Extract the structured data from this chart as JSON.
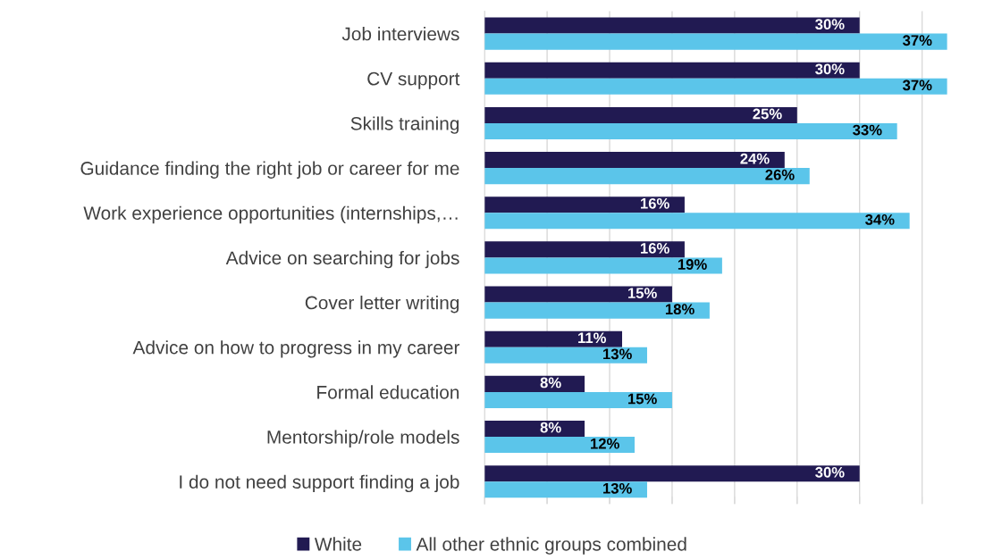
{
  "chart_data": {
    "type": "bar",
    "orientation": "horizontal",
    "categories": [
      "Job interviews",
      "CV support",
      "Skills training",
      "Guidance finding the right job or career for me",
      "Work experience opportunities (internships,…",
      "Advice on searching for jobs",
      "Cover letter writing",
      "Advice on how to progress in my career",
      "Formal education",
      "Mentorship/role models",
      "I do not need support finding a job"
    ],
    "series": [
      {
        "name": "White",
        "color": "#211a52",
        "values": [
          30,
          30,
          25,
          24,
          16,
          16,
          15,
          11,
          8,
          8,
          30
        ],
        "value_labels": [
          "30%",
          "30%",
          "25%",
          "24%",
          "16%",
          "16%",
          "15%",
          "11%",
          "8%",
          "8%",
          "30%"
        ]
      },
      {
        "name": "All other ethnic groups combined",
        "color": "#5bc5ea",
        "values": [
          37,
          37,
          33,
          26,
          34,
          19,
          18,
          13,
          15,
          12,
          13
        ],
        "value_labels": [
          "37%",
          "37%",
          "33%",
          "26%",
          "34%",
          "19%",
          "18%",
          "13%",
          "15%",
          "12%",
          "13%"
        ]
      }
    ],
    "xticks": [
      {
        "value": 0,
        "label": null
      },
      {
        "value": 5,
        "label": null
      },
      {
        "value": 10,
        "label": null
      },
      {
        "value": 15,
        "label": null
      },
      {
        "value": 20,
        "label": null
      },
      {
        "value": 25,
        "label": null
      },
      {
        "value": 30,
        "label": null
      },
      {
        "value": 35,
        "label": null
      }
    ],
    "grid": "x",
    "legend": "bottom"
  }
}
